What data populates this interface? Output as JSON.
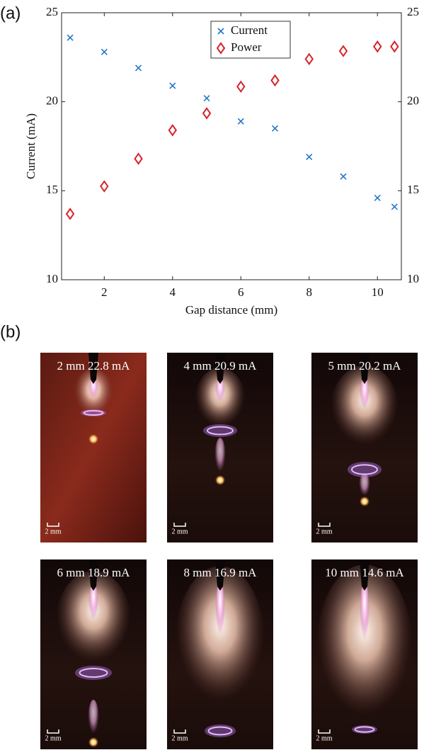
{
  "panel_labels": [
    "(a)",
    "(b)"
  ],
  "chart_data": {
    "type": "scatter",
    "x_label": "Gap distance (mm)",
    "y_label": "Current (mA)",
    "x": [
      1,
      2,
      3,
      4,
      5,
      6,
      7,
      8,
      9,
      10,
      10.5
    ],
    "series": [
      {
        "name": "Current",
        "color": "#2378c8",
        "marker": "x",
        "values": [
          23.6,
          22.8,
          21.9,
          20.9,
          20.2,
          18.9,
          18.5,
          16.9,
          15.8,
          14.6,
          14.1
        ]
      },
      {
        "name": "Power",
        "color": "#d8232a",
        "marker": "diamond",
        "axis": "y2",
        "values": [
          13.7,
          15.25,
          16.8,
          18.4,
          19.35,
          20.85,
          21.2,
          22.4,
          22.85,
          23.1,
          23.1
        ]
      }
    ],
    "xlim": [
      0.75,
      10.7
    ],
    "xticks": [
      2,
      4,
      6,
      8,
      10
    ],
    "ylim": [
      10,
      25
    ],
    "yticks": [
      10,
      15,
      20,
      25
    ],
    "y2lim": [
      10,
      25
    ],
    "y2ticks": [
      10,
      15,
      20,
      25
    ],
    "legend": "upper center"
  },
  "photos": [
    {
      "caption": "2 mm 22.8 mA",
      "scale_label": "2 mm"
    },
    {
      "caption": "4 mm 20.9 mA",
      "scale_label": "2 mm"
    },
    {
      "caption": "5 mm 20.2 mA",
      "scale_label": "2 mm"
    },
    {
      "caption": "6 mm 18.9 mA",
      "scale_label": "2 mm"
    },
    {
      "caption": "8 mm 16.9 mA",
      "scale_label": "2 mm"
    },
    {
      "caption": "10 mm 14.6 mA",
      "scale_label": "2 mm"
    }
  ]
}
